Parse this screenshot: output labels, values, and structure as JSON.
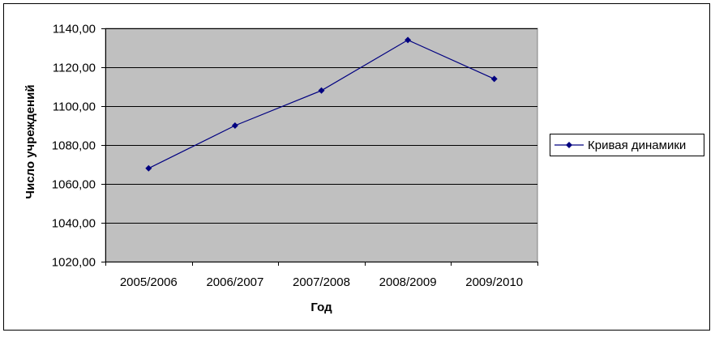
{
  "chart_data": {
    "type": "line",
    "categories": [
      "2005/2006",
      "2006/2007",
      "2007/2008",
      "2008/2009",
      "2009/2010"
    ],
    "series": [
      {
        "name": "Кривая динамики",
        "values": [
          1068,
          1090,
          1108,
          1134,
          1114
        ]
      }
    ],
    "xlabel": "Год",
    "ylabel": "Число учреждений",
    "ylim": [
      1020,
      1140
    ],
    "y_tick_labels": [
      "1020,00",
      "1040,00",
      "1060,00",
      "1080,00",
      "1100,00",
      "1120,00",
      "1140,00"
    ],
    "grid": true,
    "legend_position": "right",
    "colors": {
      "plot_background": "#c0c0c0",
      "series_line": "#000080",
      "gridline": "#000000"
    }
  }
}
